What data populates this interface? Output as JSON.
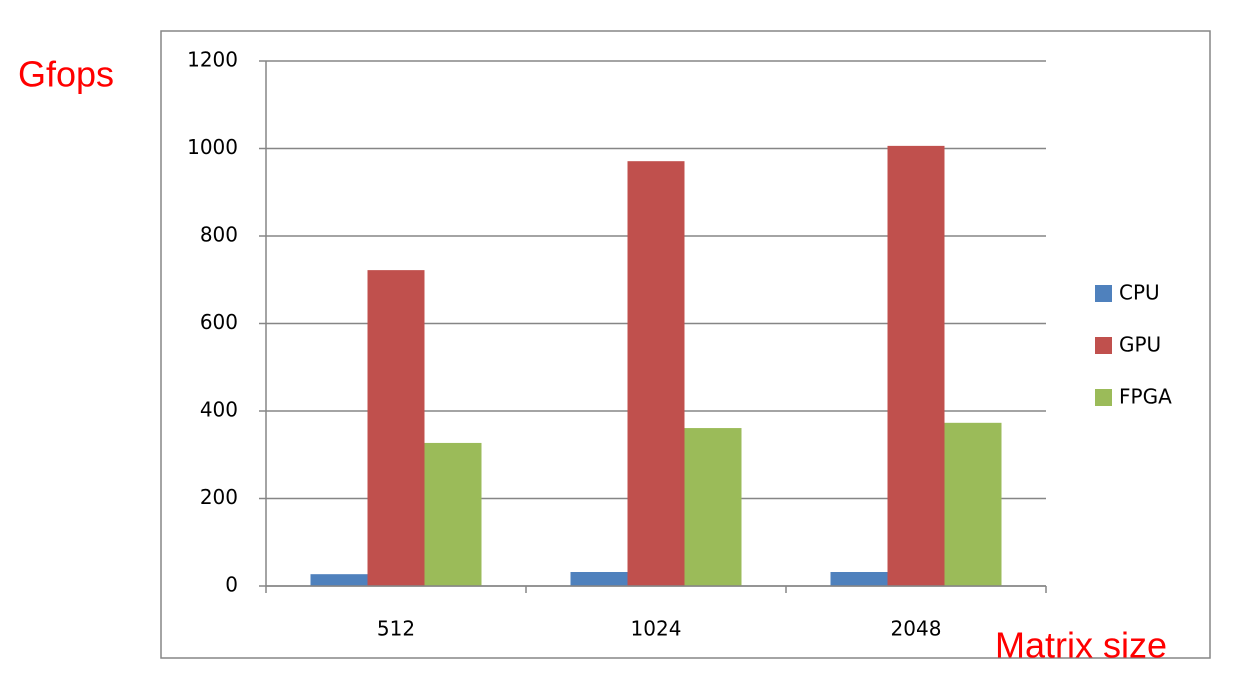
{
  "chart_data": {
    "type": "bar",
    "y_label": "Gfops",
    "x_label": "Matrix size",
    "categories": [
      "512",
      "1024",
      "2048"
    ],
    "series": [
      {
        "name": "CPU",
        "color": "#4f81bd",
        "values": [
          27,
          32,
          32
        ]
      },
      {
        "name": "GPU",
        "color": "#c0504d",
        "values": [
          722,
          971,
          1006
        ]
      },
      {
        "name": "FPGA",
        "color": "#9bbb59",
        "values": [
          327,
          361,
          373
        ]
      }
    ],
    "ylim": [
      0,
      1200
    ],
    "yticks": [
      0,
      200,
      400,
      600,
      800,
      1000,
      1200
    ],
    "grid": true,
    "legend": "right"
  }
}
